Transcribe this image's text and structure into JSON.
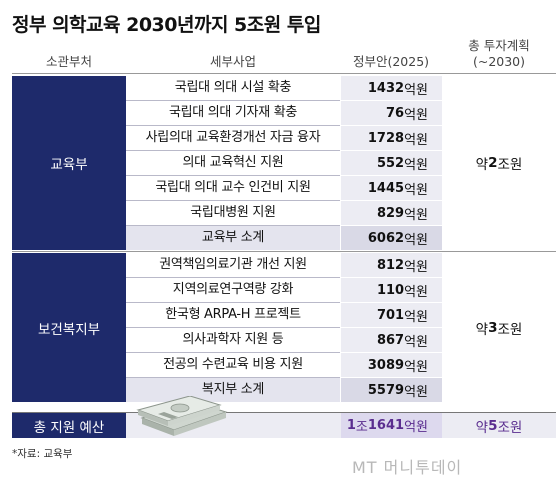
{
  "title": "정부 의학교육 2030년까지 5조원 투입",
  "headers": {
    "ministry": "소관부처",
    "item": "세부사업",
    "budget": "정부안(2025)",
    "plan_line1": "총 투자계획",
    "plan_line2": "(~2030)"
  },
  "unit": "억원",
  "groups": [
    {
      "ministry": "교육부",
      "plan_prefix": "약 ",
      "plan_value": "2",
      "plan_unit": "조원",
      "rows": [
        {
          "item": "국립대 의대 시설 확충",
          "value": "1432"
        },
        {
          "item": "국립대 의대 기자재 확충",
          "value": "76"
        },
        {
          "item": "사립의대 교육환경개선 자금 융자",
          "value": "1728"
        },
        {
          "item": "의대 교육혁신 지원",
          "value": "552"
        },
        {
          "item": "국립대 의대 교수 인건비 지원",
          "value": "1445"
        },
        {
          "item": "국립대병원 지원",
          "value": "829"
        }
      ],
      "subtotal": {
        "item": "교육부 소계",
        "value": "6062"
      }
    },
    {
      "ministry": "보건복지부",
      "plan_prefix": "약 ",
      "plan_value": "3",
      "plan_unit": "조원",
      "rows": [
        {
          "item": "권역책임의료기관 개선 지원",
          "value": "812"
        },
        {
          "item": "지역의료연구역량 강화",
          "value": "110"
        },
        {
          "item": "한국형 ARPA-H 프로젝트",
          "value": "701"
        },
        {
          "item": "의사과학자 지원 등",
          "value": "867"
        },
        {
          "item": "전공의 수련교육 비용 지원",
          "value": "3089"
        }
      ],
      "subtotal": {
        "item": "복지부 소계",
        "value": "5579"
      }
    }
  ],
  "total": {
    "label": "총 지원 예산",
    "value_a": "1",
    "unit_a": "조",
    "value_b": "1641",
    "unit_b": "억원",
    "plan_prefix": "약 ",
    "plan_value": "5",
    "plan_unit": "조원"
  },
  "source": "*자료: 교육부",
  "brand": "MT 머니투데이",
  "colors": {
    "navy": "#1e2a6b",
    "cell": "#ececf3",
    "subtotal": "#d9d9e6",
    "total_text": "#5a2d8f"
  },
  "chart_data": {
    "type": "table",
    "title": "정부 의학교육 2030년까지 5조원 투입",
    "columns": [
      "소관부처",
      "세부사업",
      "정부안(2025)",
      "총 투자계획(~2030)"
    ],
    "unit": "억원",
    "rows": [
      [
        "교육부",
        "국립대 의대 시설 확충",
        1432,
        "약 2조원"
      ],
      [
        "교육부",
        "국립대 의대 기자재 확충",
        76,
        "약 2조원"
      ],
      [
        "교육부",
        "사립의대 교육환경개선 자금 융자",
        1728,
        "약 2조원"
      ],
      [
        "교육부",
        "의대 교육혁신 지원",
        552,
        "약 2조원"
      ],
      [
        "교육부",
        "국립대 의대 교수 인건비 지원",
        1445,
        "약 2조원"
      ],
      [
        "교육부",
        "국립대병원 지원",
        829,
        "약 2조원"
      ],
      [
        "교육부",
        "교육부 소계",
        6062,
        "약 2조원"
      ],
      [
        "보건복지부",
        "권역책임의료기관 개선 지원",
        812,
        "약 3조원"
      ],
      [
        "보건복지부",
        "지역의료연구역량 강화",
        110,
        "약 3조원"
      ],
      [
        "보건복지부",
        "한국형 ARPA-H 프로젝트",
        701,
        "약 3조원"
      ],
      [
        "보건복지부",
        "의사과학자 지원 등",
        867,
        "약 3조원"
      ],
      [
        "보건복지부",
        "전공의 수련교육 비용 지원",
        3089,
        "약 3조원"
      ],
      [
        "보건복지부",
        "복지부 소계",
        5579,
        "약 3조원"
      ],
      [
        "총 지원 예산",
        "",
        11641,
        "약 5조원"
      ]
    ]
  }
}
